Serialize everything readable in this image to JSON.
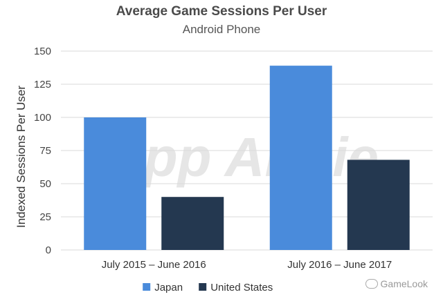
{
  "chart_data": {
    "type": "bar",
    "title": "Average Game Sessions Per User",
    "subtitle": "Android Phone",
    "ylabel": "Indexed Sessions Per User",
    "xlabel": "",
    "categories": [
      "July 2015 – June 2016",
      "July 2016 – June 2017"
    ],
    "series": [
      {
        "name": "Japan",
        "color": "#4a8bdb",
        "values": [
          100,
          139
        ]
      },
      {
        "name": "United States",
        "color": "#243850",
        "values": [
          40,
          68
        ]
      }
    ],
    "ylim": [
      0,
      150
    ],
    "yticks": [
      0,
      25,
      50,
      75,
      100,
      125,
      150
    ],
    "grid": true,
    "legend": "bottom-center",
    "watermark": "App Annie"
  },
  "footer": {
    "source_mark": "GameLook"
  }
}
